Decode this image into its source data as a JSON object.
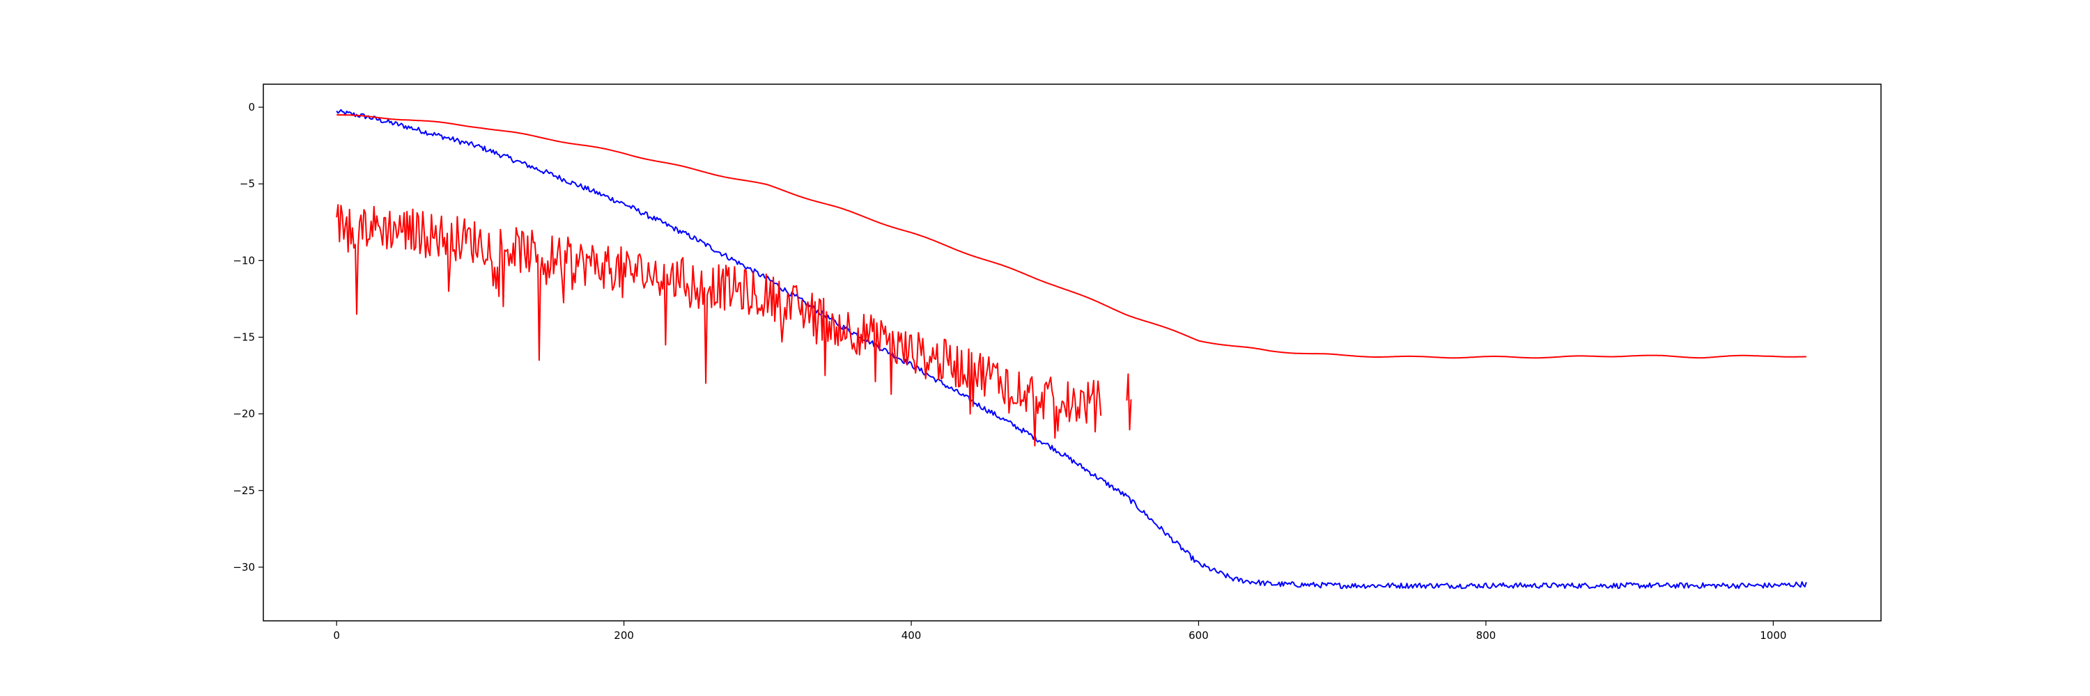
{
  "chart_data": {
    "type": "line",
    "title": "",
    "xlabel": "",
    "ylabel": "",
    "xlim": [
      -51,
      1075
    ],
    "ylim": [
      -33.5,
      1.5
    ],
    "grid": false,
    "legend": "none",
    "x_ticks": [
      0,
      200,
      400,
      600,
      800,
      1000
    ],
    "x_tick_labels": [
      "0",
      "200",
      "400",
      "600",
      "800",
      "1000"
    ],
    "y_ticks": [
      0,
      -5,
      -10,
      -15,
      -20,
      -25,
      -30
    ],
    "y_tick_labels": [
      "0",
      "−5",
      "−10",
      "−15",
      "−20",
      "−25",
      "−30"
    ],
    "series": [
      {
        "color": "#0000ff",
        "style": "noisy",
        "noise": 0.18,
        "x": [
          0,
          20,
          50,
          100,
          150,
          200,
          250,
          300,
          350,
          400,
          450,
          500,
          550,
          575,
          600,
          625,
          650,
          700,
          800,
          900,
          1000,
          1023
        ],
        "y": [
          -0.3,
          -0.6,
          -1.3,
          -2.6,
          -4.4,
          -6.3,
          -8.6,
          -11.2,
          -14.2,
          -16.8,
          -19.6,
          -22.3,
          -25.4,
          -27.6,
          -29.8,
          -30.8,
          -31.1,
          -31.2,
          -31.2,
          -31.2,
          -31.2,
          -31.1
        ]
      },
      {
        "color": "#ff0000",
        "style": "smooth",
        "x": [
          0,
          50,
          100,
          150,
          200,
          250,
          300,
          350,
          400,
          450,
          500,
          550,
          600,
          625,
          650,
          700,
          750,
          800,
          850,
          900,
          950,
          1000,
          1023
        ],
        "y": [
          -0.5,
          -0.8,
          -1.3,
          -2.1,
          -3.0,
          -4.1,
          -5.1,
          -6.6,
          -8.2,
          -9.9,
          -11.6,
          -13.5,
          -15.2,
          -15.6,
          -15.9,
          -16.2,
          -16.3,
          -16.3,
          -16.3,
          -16.2,
          -16.3,
          -16.2,
          -16.3
        ]
      },
      {
        "color": "#ff0000",
        "style": "spiky",
        "x": [
          0,
          50,
          100,
          150,
          200,
          250,
          300,
          350,
          400,
          450,
          500,
          532,
          550,
          553
        ],
        "y": [
          -7.6,
          -8.0,
          -8.8,
          -9.8,
          -10.6,
          -11.4,
          -12.3,
          -14.2,
          -16.0,
          -17.3,
          -19.2,
          -19.3,
          -18.5,
          -18.9
        ],
        "gaps": [
          [
            532,
            550
          ]
        ],
        "spikes": [
          [
            14,
            -13.5
          ],
          [
            141,
            -16.5
          ],
          [
            257,
            -18.0
          ],
          [
            78,
            -12.0
          ],
          [
            116,
            -13.0
          ],
          [
            229,
            -15.5
          ],
          [
            340,
            -17.5
          ],
          [
            441,
            -20.0
          ],
          [
            510,
            -20.5
          ]
        ]
      }
    ]
  }
}
